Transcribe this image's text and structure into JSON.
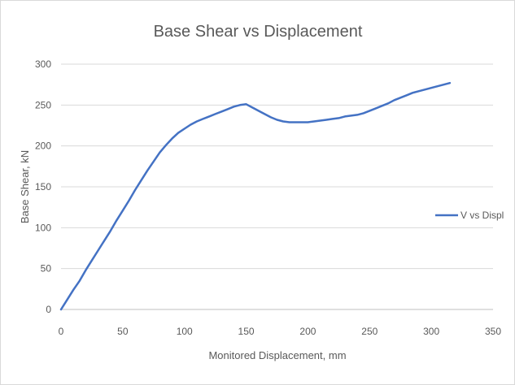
{
  "chart_data": {
    "type": "line",
    "title": "Base Shear vs Displacement",
    "xlabel": "Monitored Displacement, mm",
    "ylabel": "Base Shear, kN",
    "xlim": [
      0,
      350
    ],
    "ylim": [
      0,
      300
    ],
    "xticks": [
      "0",
      "50",
      "100",
      "150",
      "200",
      "250",
      "300",
      "350"
    ],
    "yticks": [
      "0",
      "50",
      "100",
      "150",
      "200",
      "250",
      "300"
    ],
    "grid": "horizontal",
    "legend": "right",
    "series": [
      {
        "name": "V vs Displ",
        "color": "#4472c4",
        "x": [
          0,
          5,
          10,
          15,
          20,
          25,
          30,
          35,
          40,
          45,
          50,
          55,
          60,
          65,
          70,
          75,
          80,
          85,
          90,
          95,
          100,
          105,
          110,
          115,
          120,
          125,
          130,
          135,
          140,
          145,
          150,
          155,
          160,
          165,
          170,
          175,
          180,
          185,
          190,
          195,
          200,
          205,
          210,
          215,
          220,
          225,
          230,
          235,
          240,
          245,
          250,
          255,
          260,
          265,
          270,
          275,
          280,
          285,
          290,
          295,
          300,
          305,
          310,
          315
        ],
        "y": [
          0,
          12,
          24,
          35,
          48,
          60,
          72,
          84,
          96,
          109,
          121,
          133,
          146,
          158,
          170,
          181,
          192,
          201,
          209,
          216,
          221,
          226,
          230,
          233,
          236,
          239,
          242,
          245,
          248,
          250,
          251,
          247,
          243,
          239,
          235,
          232,
          230,
          229,
          229,
          229,
          229,
          230,
          231,
          232,
          233,
          234,
          236,
          237,
          238,
          240,
          243,
          246,
          249,
          252,
          256,
          259,
          262,
          265,
          267,
          269,
          271,
          273,
          275,
          277
        ]
      }
    ]
  }
}
